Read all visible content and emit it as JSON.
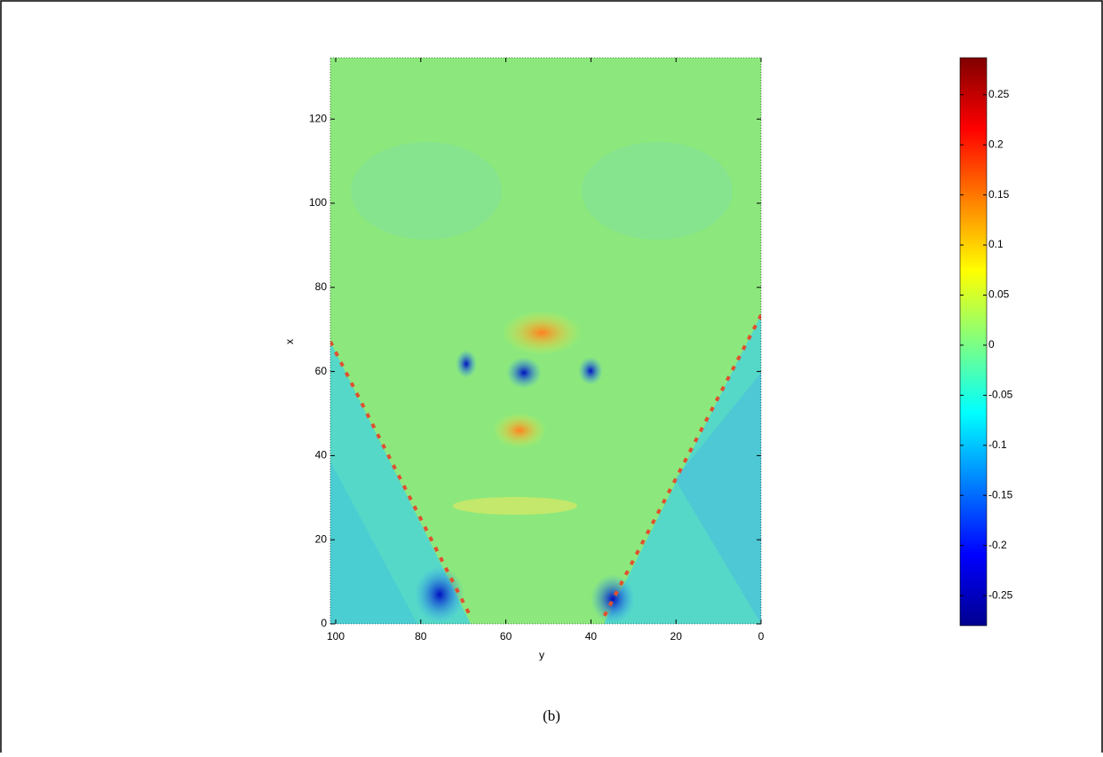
{
  "chart_data": {
    "type": "heatmap",
    "xlabel": "y",
    "ylabel": "x",
    "caption": "(b)",
    "xlim": [
      101.25,
      0
    ],
    "xticks": [
      100,
      80,
      60,
      40,
      20,
      0
    ],
    "ylim": [
      0,
      134.6
    ],
    "yticks": [
      0,
      20,
      40,
      60,
      80,
      100,
      120
    ],
    "colormap": "jet",
    "clim": [
      -0.28,
      0.287
    ],
    "cticks": [
      0.25,
      0.2,
      0.15,
      0.1,
      0.05,
      0,
      -0.05,
      -0.1,
      -0.15,
      -0.2,
      -0.25
    ]
  }
}
